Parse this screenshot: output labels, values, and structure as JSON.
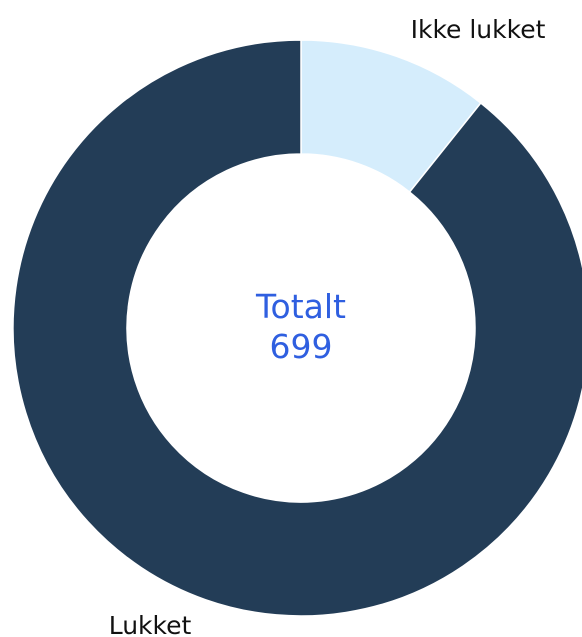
{
  "chart_data": {
    "type": "pie",
    "variant": "donut",
    "categories": [
      "Ikke lukket",
      "Lukket"
    ],
    "values": [
      75,
      624
    ],
    "colors": [
      "#d5edfc",
      "#233d57"
    ],
    "center_label": {
      "title": "Totalt",
      "value": "699"
    },
    "legend": "none"
  }
}
